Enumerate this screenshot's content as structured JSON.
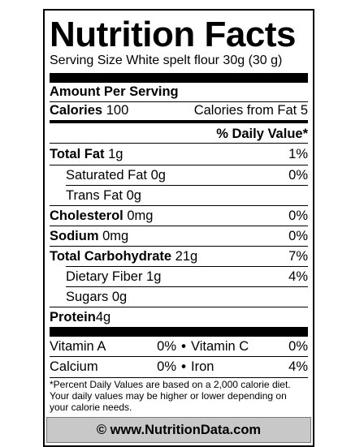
{
  "label": {
    "title": "Nutrition Facts",
    "serving_size": "Serving Size White spelt flour 30g (30 g)",
    "amount_per_serving": "Amount Per Serving",
    "calories_label": "Calories",
    "calories_value": "100",
    "calories_from_fat": "Calories from Fat 5",
    "daily_value_header": "% Daily Value*",
    "nutrients": [
      {
        "name": "Total Fat",
        "amount": "1g",
        "dv": "1%"
      },
      {
        "name": "Saturated Fat",
        "amount": "0g",
        "dv": "0%"
      },
      {
        "name": "Trans Fat",
        "amount": "0g",
        "dv": ""
      },
      {
        "name": "Cholesterol",
        "amount": "0mg",
        "dv": "0%"
      },
      {
        "name": "Sodium",
        "amount": "0mg",
        "dv": "0%"
      },
      {
        "name": "Total Carbohydrate",
        "amount": "21g",
        "dv": "7%"
      },
      {
        "name": "Dietary Fiber",
        "amount": "1g",
        "dv": "4%"
      },
      {
        "name": "Sugars",
        "amount": "0g",
        "dv": ""
      },
      {
        "name": "Protein",
        "amount": "4g",
        "dv": ""
      }
    ],
    "vitamins": [
      {
        "name1": "Vitamin A",
        "pct1": "0%",
        "sep": "•",
        "name2": "Vitamin C",
        "pct2": "0%"
      },
      {
        "name1": "Calcium",
        "pct1": "0%",
        "sep": "•",
        "name2": "Iron",
        "pct2": "4%"
      }
    ],
    "footnote": "*Percent Daily Values are based on a 2,000 calorie diet. Your daily values may be higher or lower depending on your calorie needs.",
    "website": "© www.NutritionData.com"
  }
}
